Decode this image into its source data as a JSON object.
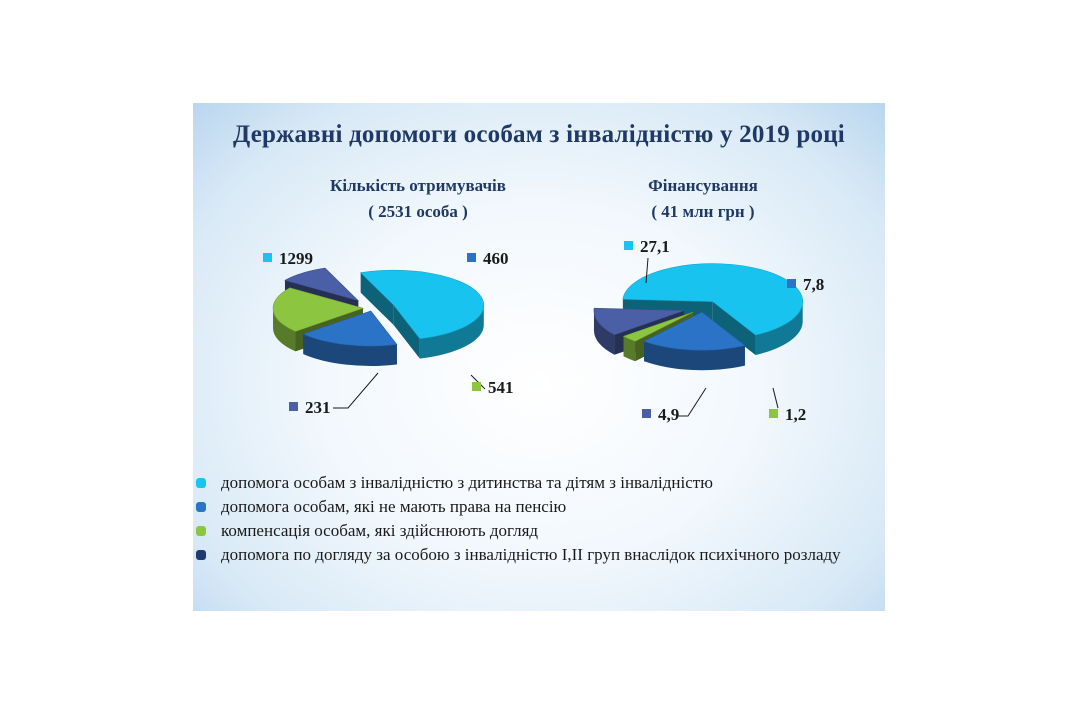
{
  "title": "Державні допомоги особам з інвалідністю у 2019 році",
  "colors": {
    "childhood_disability": "#19c3f0",
    "no_pension": "#2b73c6",
    "caregiver_compensation": "#8cc641",
    "mental_disorder_care": "#1f3a6e",
    "title": "#1f3864"
  },
  "legend": [
    {
      "label": "допомога особам з інвалідністю з дитинства та дітям з інвалідністю",
      "color": "#19c3f0"
    },
    {
      "label": "допомога особам, які не мають права на пенсію",
      "color": "#2b73c6"
    },
    {
      "label": "компенсація особам, які здійснюють догляд",
      "color": "#8cc641"
    },
    {
      "label": "допомога по догляду за особою з інвалідністю І,ІІ груп внаслідок психічного розладу",
      "color": "#1f3a6e"
    }
  ],
  "chart_data": [
    {
      "type": "pie",
      "style": "3d-exploded",
      "title": "Кількість отримувачів",
      "subtitle": "( 2531 особа )",
      "slices": [
        {
          "label": "1299",
          "value": 1299,
          "color": "#19c3f0"
        },
        {
          "label": "460",
          "value": 460,
          "color": "#2b73c6"
        },
        {
          "label": "541",
          "value": 541,
          "color": "#8cc641"
        },
        {
          "label": "231",
          "value": 231,
          "color": "#4a5fa6"
        }
      ]
    },
    {
      "type": "pie",
      "style": "3d-exploded",
      "title": "Фінансування",
      "subtitle": "( 41 млн грн )",
      "slices": [
        {
          "label": "27,1",
          "value": 27.1,
          "color": "#19c3f0"
        },
        {
          "label": "7,8",
          "value": 7.8,
          "color": "#2b73c6"
        },
        {
          "label": "1,2",
          "value": 1.2,
          "color": "#8cc641"
        },
        {
          "label": "4,9",
          "value": 4.9,
          "color": "#4a5fa6"
        }
      ]
    }
  ]
}
